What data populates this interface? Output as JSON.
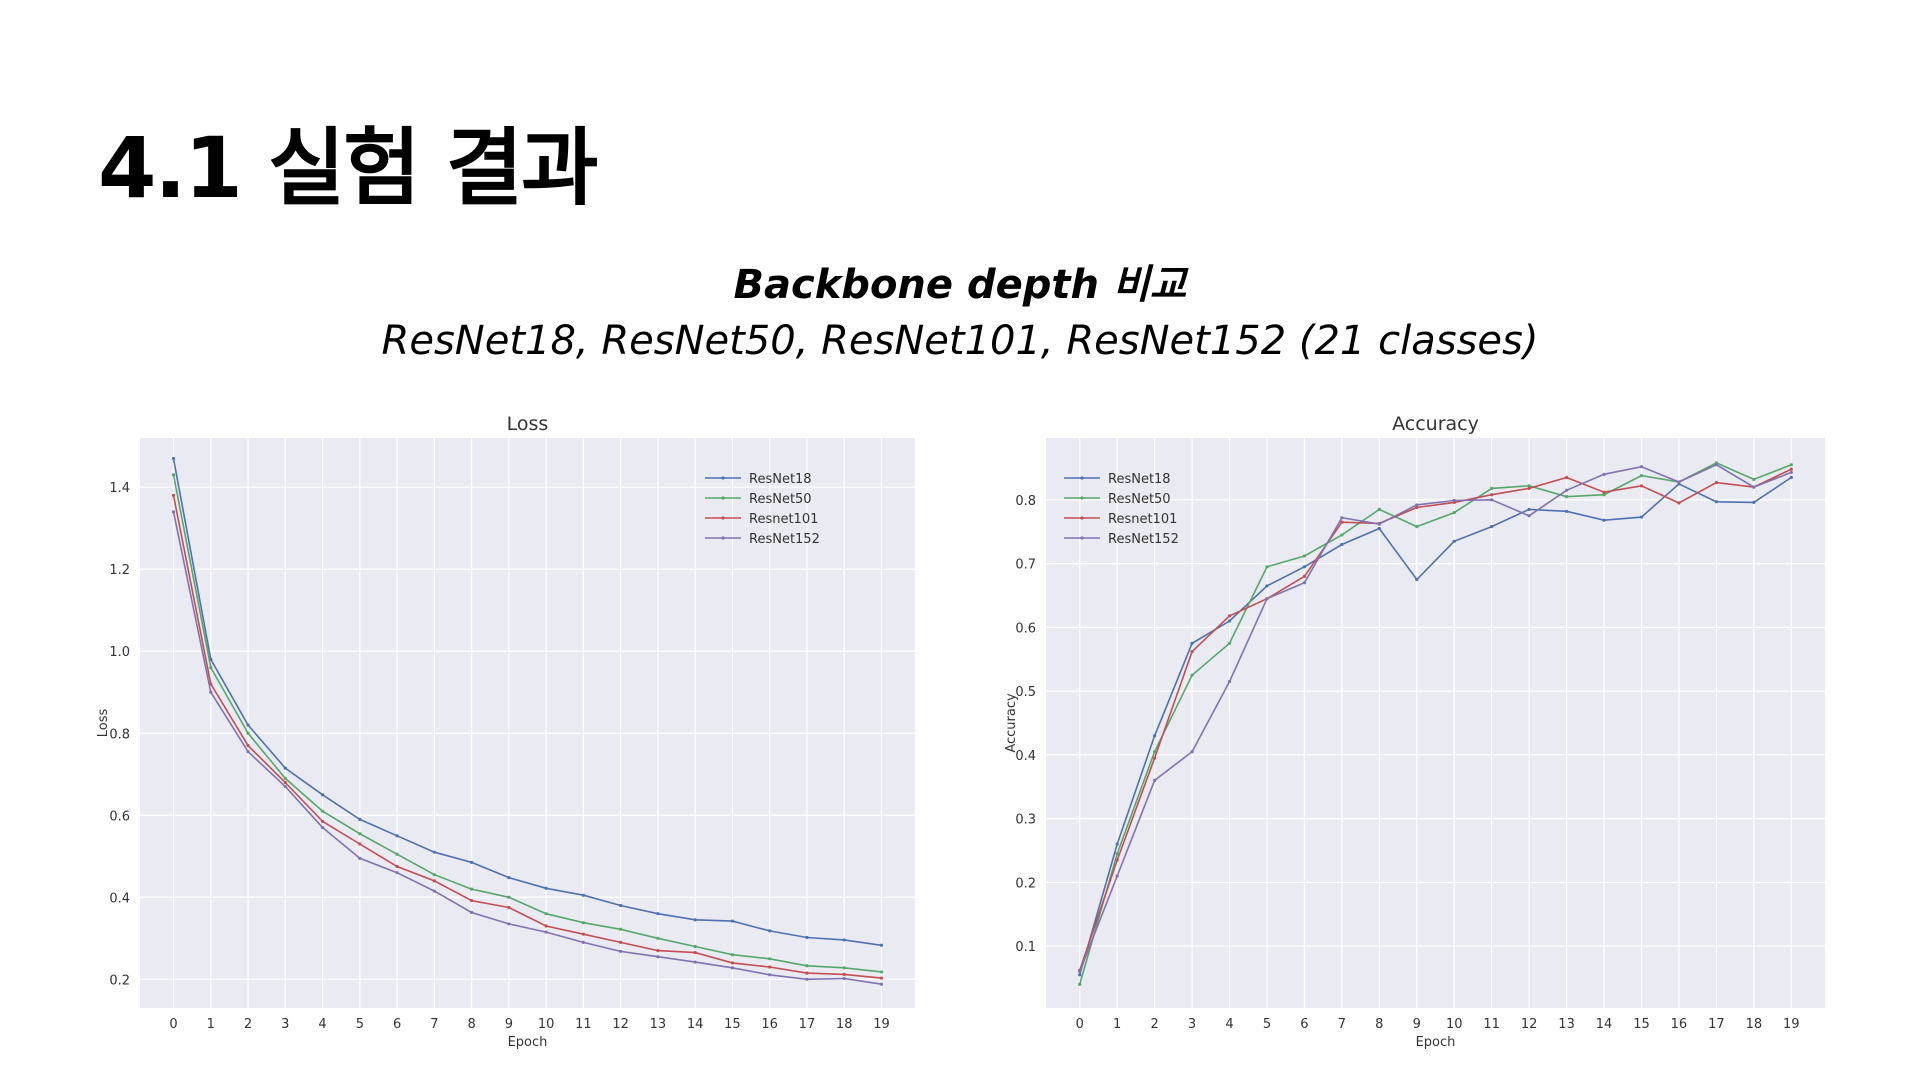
{
  "slide": {
    "title": "4.1 실험 결과",
    "subtitle_main": "Backbone depth 비교",
    "subtitle_detail": "ResNet18, ResNet50, ResNet101, ResNet152 (21 classes)"
  },
  "colors": {
    "ResNet18": "#4c72b0",
    "ResNet50": "#55a868",
    "Resnet101": "#c44e52",
    "ResNet152": "#8172b2",
    "plot_bg": "#eaeaf2",
    "grid": "#ffffff"
  },
  "chart_data": [
    {
      "type": "line",
      "title": "Loss",
      "xlabel": "Epoch",
      "ylabel": "Loss",
      "x": [
        0,
        1,
        2,
        3,
        4,
        5,
        6,
        7,
        8,
        9,
        10,
        11,
        12,
        13,
        14,
        15,
        16,
        17,
        18,
        19
      ],
      "xlim": [
        -0.9,
        19.9
      ],
      "ylim": [
        0.13,
        1.52
      ],
      "yticks": [
        0.2,
        0.4,
        0.6,
        0.8,
        1.0,
        1.2,
        1.4
      ],
      "grid": true,
      "legend": "top-right",
      "series": [
        {
          "name": "ResNet18",
          "values": [
            1.47,
            0.98,
            0.82,
            0.715,
            0.65,
            0.59,
            0.55,
            0.51,
            0.485,
            0.448,
            0.422,
            0.405,
            0.38,
            0.36,
            0.345,
            0.342,
            0.318,
            0.302,
            0.296,
            0.283
          ]
        },
        {
          "name": "ResNet50",
          "values": [
            1.43,
            0.96,
            0.8,
            0.69,
            0.61,
            0.555,
            0.505,
            0.455,
            0.42,
            0.4,
            0.36,
            0.338,
            0.322,
            0.3,
            0.28,
            0.26,
            0.25,
            0.233,
            0.228,
            0.218
          ]
        },
        {
          "name": "Resnet101",
          "values": [
            1.38,
            0.92,
            0.77,
            0.68,
            0.585,
            0.53,
            0.475,
            0.44,
            0.392,
            0.375,
            0.33,
            0.31,
            0.29,
            0.27,
            0.265,
            0.24,
            0.23,
            0.215,
            0.212,
            0.203
          ]
        },
        {
          "name": "ResNet152",
          "values": [
            1.34,
            0.9,
            0.755,
            0.67,
            0.57,
            0.495,
            0.46,
            0.415,
            0.363,
            0.335,
            0.315,
            0.29,
            0.268,
            0.255,
            0.242,
            0.228,
            0.211,
            0.2,
            0.202,
            0.188
          ]
        }
      ]
    },
    {
      "type": "line",
      "title": "Accuracy",
      "xlabel": "Epoch",
      "ylabel": "Accuracy",
      "x": [
        0,
        1,
        2,
        3,
        4,
        5,
        6,
        7,
        8,
        9,
        10,
        11,
        12,
        13,
        14,
        15,
        16,
        17,
        18,
        19
      ],
      "xlim": [
        -0.9,
        19.9
      ],
      "ylim": [
        0.003,
        0.897
      ],
      "yticks": [
        0.1,
        0.2,
        0.3,
        0.4,
        0.5,
        0.6,
        0.7,
        0.8
      ],
      "grid": true,
      "legend": "top-left",
      "series": [
        {
          "name": "ResNet18",
          "values": [
            0.055,
            0.26,
            0.43,
            0.575,
            0.61,
            0.665,
            0.695,
            0.73,
            0.755,
            0.675,
            0.735,
            0.758,
            0.785,
            0.782,
            0.768,
            0.773,
            0.825,
            0.797,
            0.796,
            0.835
          ]
        },
        {
          "name": "ResNet50",
          "values": [
            0.04,
            0.245,
            0.405,
            0.525,
            0.575,
            0.695,
            0.712,
            0.745,
            0.785,
            0.758,
            0.78,
            0.818,
            0.822,
            0.805,
            0.808,
            0.838,
            0.828,
            0.858,
            0.832,
            0.855
          ]
        },
        {
          "name": "Resnet101",
          "values": [
            0.062,
            0.235,
            0.395,
            0.562,
            0.618,
            0.645,
            0.68,
            0.765,
            0.763,
            0.788,
            0.796,
            0.808,
            0.818,
            0.835,
            0.812,
            0.822,
            0.795,
            0.827,
            0.82,
            0.848
          ]
        },
        {
          "name": "ResNet152",
          "values": [
            0.06,
            0.21,
            0.36,
            0.405,
            0.515,
            0.645,
            0.67,
            0.772,
            0.762,
            0.792,
            0.799,
            0.8,
            0.775,
            0.815,
            0.84,
            0.852,
            0.828,
            0.855,
            0.82,
            0.843
          ]
        }
      ]
    }
  ]
}
